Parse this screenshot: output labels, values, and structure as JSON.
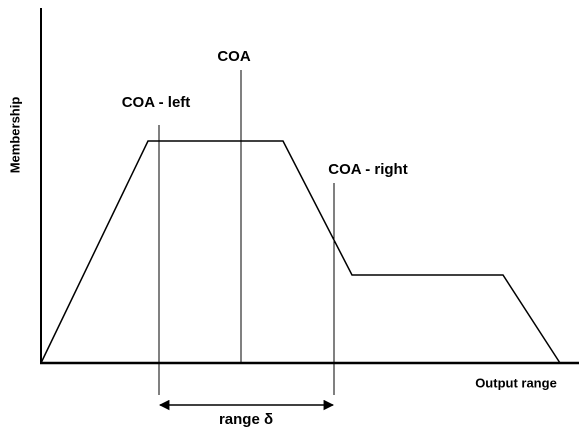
{
  "axes": {
    "y_label": "Membership",
    "x_label": "Output range"
  },
  "markers": [
    {
      "label": "COA - left"
    },
    {
      "label": "COA"
    },
    {
      "label": "COA - right"
    }
  ],
  "range_label": "range δ"
}
